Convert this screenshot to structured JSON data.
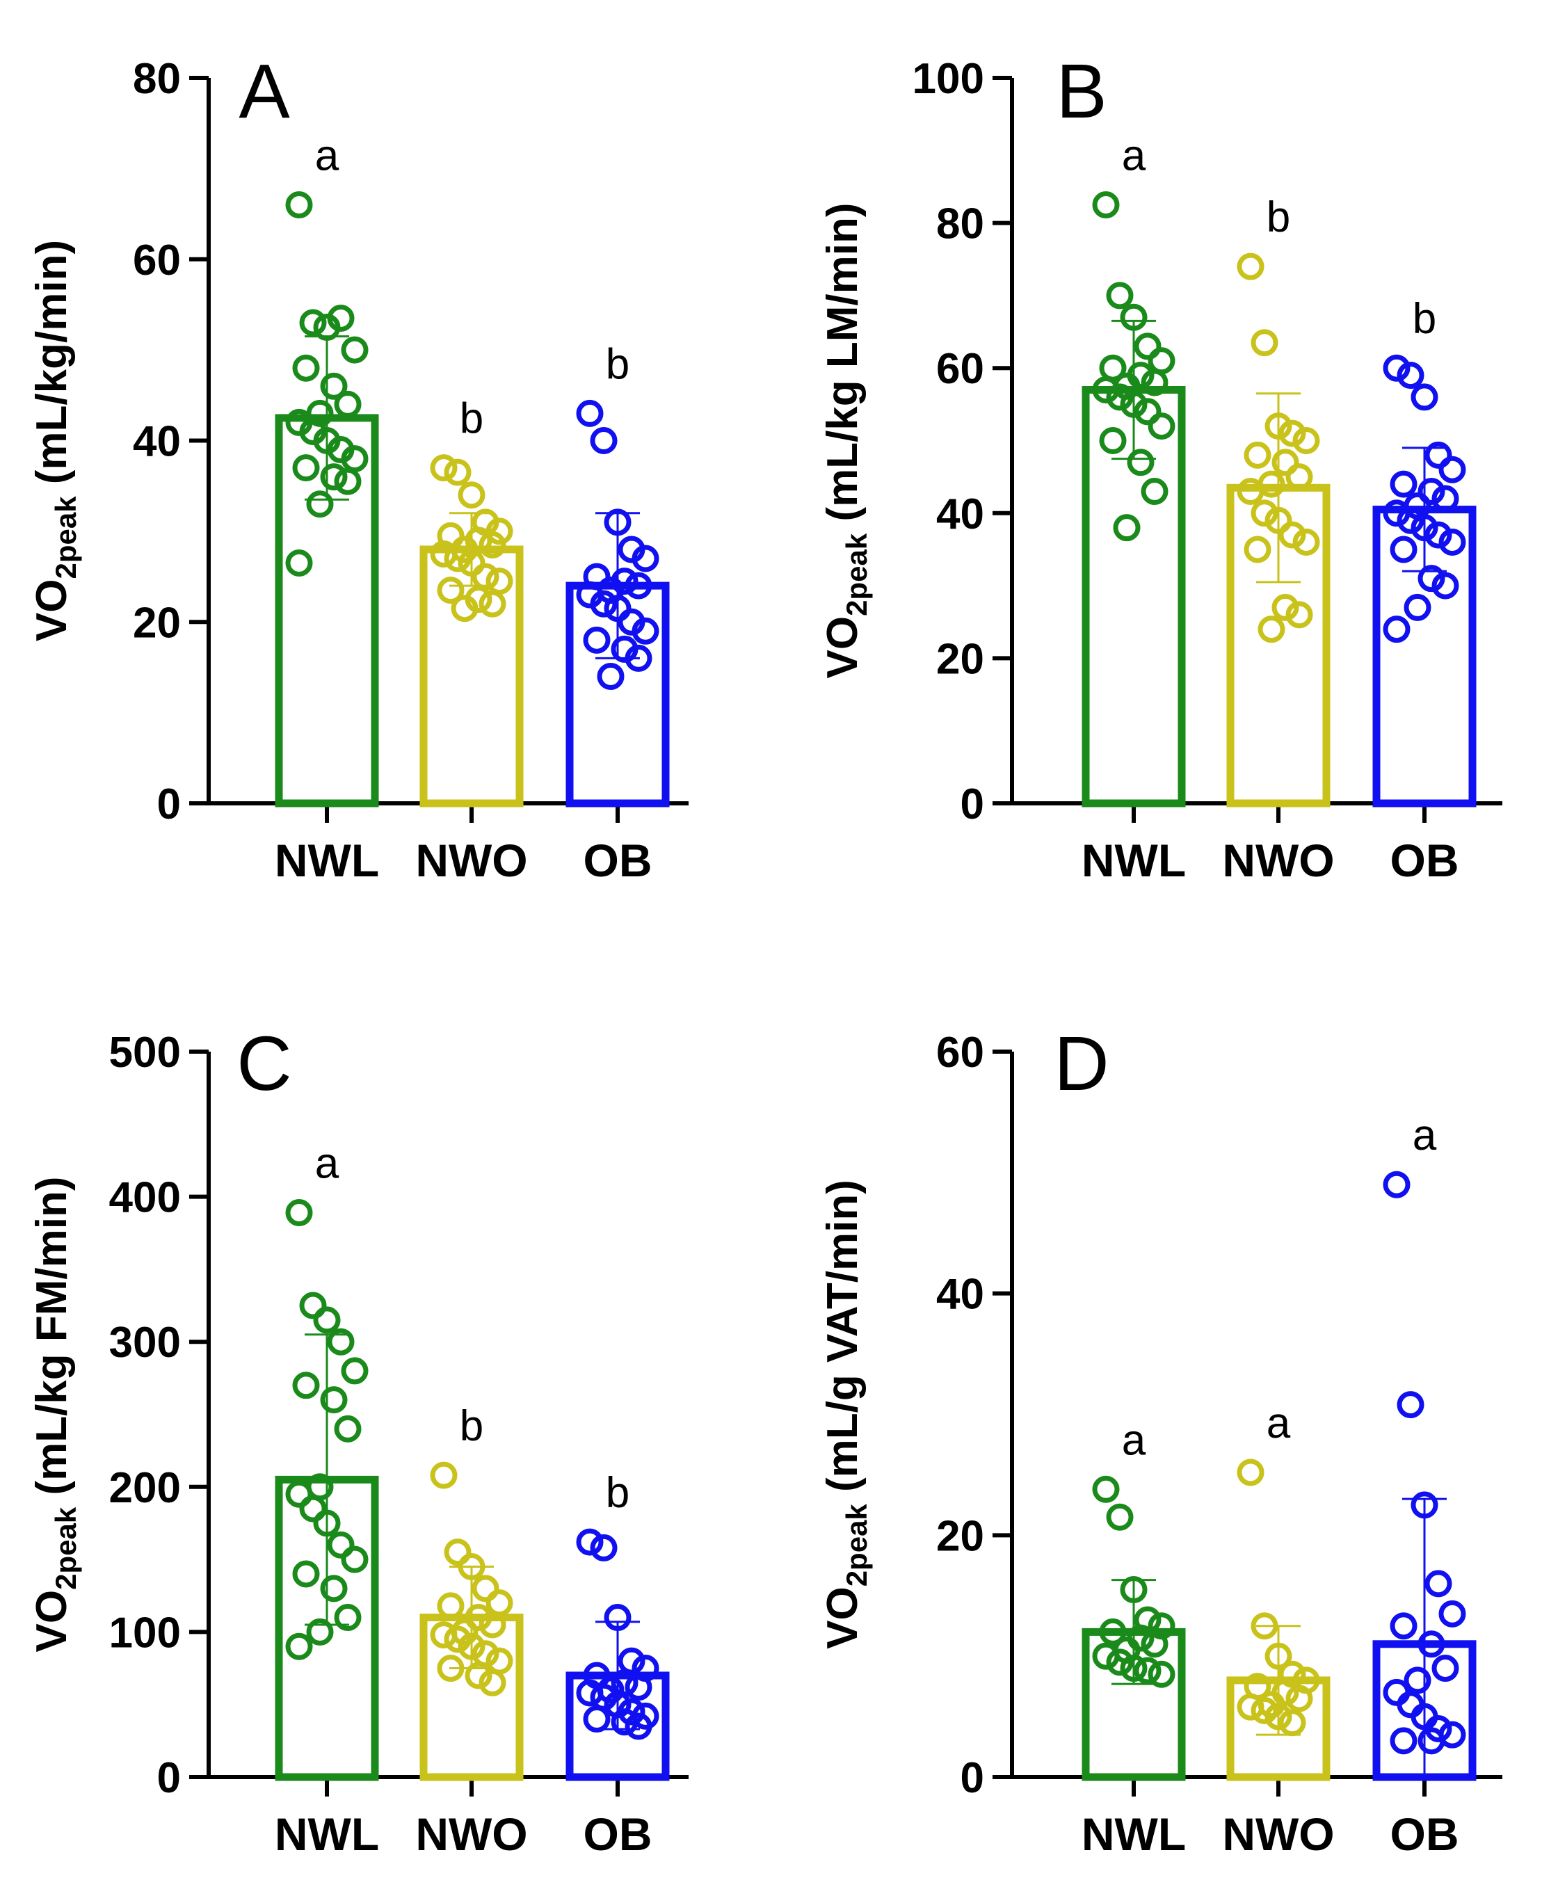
{
  "chart_data": [
    {
      "type": "bar",
      "panel": "A",
      "title": "A",
      "categories": [
        "NWL",
        "NWO",
        "OB"
      ],
      "colors": [
        "#1a8a1a",
        "#c8c21a",
        "#1010f0"
      ],
      "ylabel": {
        "main": "VO",
        "sub": "2peak",
        "units": " (mL/kg/min)"
      },
      "ylim": [
        0,
        80
      ],
      "yticks": [
        0,
        20,
        40,
        60,
        80
      ],
      "means": [
        42.5,
        28,
        24
      ],
      "sd": [
        9,
        4,
        8
      ],
      "letters": [
        "a",
        "b",
        "b"
      ],
      "points": [
        [
          66,
          53,
          52.5,
          53.5,
          50,
          48,
          46,
          44,
          43,
          42,
          41,
          40,
          39,
          38,
          37,
          36,
          35.5,
          33,
          26.5
        ],
        [
          37,
          36.5,
          34,
          31,
          30,
          29.5,
          29,
          28.5,
          28,
          27.5,
          27,
          26.5,
          25,
          24.5,
          23.5,
          22.5,
          22,
          21.5
        ],
        [
          43,
          40,
          31,
          28,
          27,
          25,
          24.5,
          24,
          23.5,
          23,
          22,
          21.5,
          20,
          19,
          18,
          17,
          16,
          14
        ]
      ]
    },
    {
      "type": "bar",
      "panel": "B",
      "title": "B",
      "categories": [
        "NWL",
        "NWO",
        "OB"
      ],
      "colors": [
        "#1a8a1a",
        "#c8c21a",
        "#1010f0"
      ],
      "ylabel": {
        "main": "VO",
        "sub": "2peak",
        "units": " (mL/kg LM/min)"
      },
      "ylim": [
        0,
        100
      ],
      "yticks": [
        0,
        20,
        40,
        60,
        80,
        100
      ],
      "means": [
        57,
        43.5,
        40.5
      ],
      "sd": [
        9.5,
        13,
        8.5
      ],
      "letters": [
        "a",
        "b",
        "b"
      ],
      "points": [
        [
          82.5,
          70,
          67,
          63,
          61,
          60,
          59,
          58,
          57.5,
          57,
          56,
          55,
          54,
          52,
          50,
          47,
          43,
          38
        ],
        [
          74,
          63.5,
          52,
          51,
          50,
          48,
          47,
          45,
          44,
          43,
          40,
          39,
          37,
          36,
          35,
          27,
          26,
          24
        ],
        [
          60,
          59,
          56,
          48,
          46,
          44,
          43,
          42,
          41,
          40,
          39,
          38,
          37,
          36,
          35,
          31,
          30,
          27,
          24
        ]
      ]
    },
    {
      "type": "bar",
      "panel": "C",
      "title": "C",
      "categories": [
        "NWL",
        "NWO",
        "OB"
      ],
      "colors": [
        "#1a8a1a",
        "#c8c21a",
        "#1010f0"
      ],
      "ylabel": {
        "main": "VO",
        "sub": "2peak",
        "units": " (mL/kg FM/min)"
      },
      "ylim": [
        0,
        500
      ],
      "yticks": [
        0,
        100,
        200,
        300,
        400,
        500
      ],
      "means": [
        205,
        110,
        70
      ],
      "sd": [
        100,
        35,
        37
      ],
      "letters": [
        "a",
        "b",
        "b"
      ],
      "points": [
        [
          389,
          325,
          315,
          300,
          280,
          270,
          260,
          240,
          200,
          195,
          185,
          175,
          160,
          150,
          140,
          130,
          110,
          100,
          90
        ],
        [
          208,
          155,
          145,
          130,
          120,
          118,
          110,
          105,
          100,
          98,
          95,
          90,
          85,
          80,
          75,
          70,
          65
        ],
        [
          162,
          158,
          110,
          80,
          75,
          70,
          65,
          62,
          60,
          58,
          55,
          50,
          45,
          42,
          40,
          38,
          35
        ]
      ]
    },
    {
      "type": "bar",
      "panel": "D",
      "title": "D",
      "categories": [
        "NWL",
        "NWO",
        "OB"
      ],
      "colors": [
        "#1a8a1a",
        "#c8c21a",
        "#1010f0"
      ],
      "ylabel": {
        "main": "VO",
        "sub": "2peak",
        "units": " (mL/g VAT/min)"
      },
      "ylim": [
        0,
        60
      ],
      "yticks": [
        0,
        20,
        40,
        60
      ],
      "means": [
        12,
        8,
        11
      ],
      "sd": [
        4.3,
        4.5,
        12
      ],
      "letters": [
        "a",
        "a",
        "a"
      ],
      "points": [
        [
          23.8,
          21.5,
          15.5,
          13,
          12.5,
          12,
          11.5,
          11,
          10.5,
          10,
          9.5,
          9,
          8.8,
          8.5
        ],
        [
          25.2,
          12.5,
          10,
          8.5,
          8,
          7.5,
          7,
          6.5,
          6,
          5.8,
          5.5,
          5,
          4.5
        ],
        [
          49,
          30.8,
          22.5,
          16,
          13.5,
          12.5,
          11,
          9,
          8,
          7,
          6,
          5,
          4,
          3.5,
          3,
          3
        ]
      ]
    }
  ]
}
